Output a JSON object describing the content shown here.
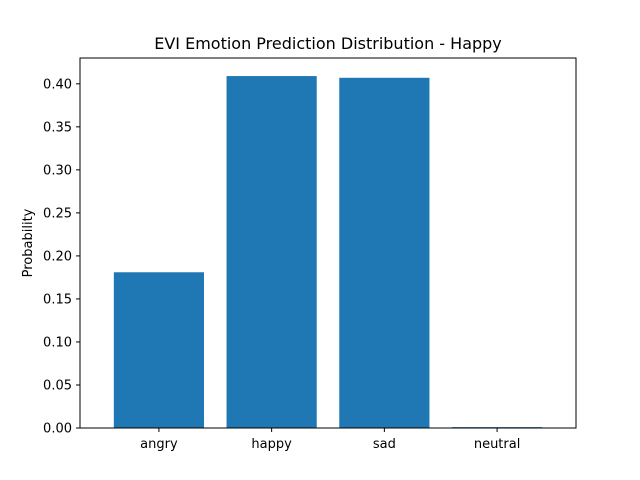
{
  "chart_data": {
    "type": "bar",
    "title": "EVI Emotion Prediction Distribution - Happy",
    "xlabel": "",
    "ylabel": "Probability",
    "categories": [
      "angry",
      "happy",
      "sad",
      "neutral"
    ],
    "values": [
      0.181,
      0.409,
      0.407,
      0.001
    ],
    "ylim": [
      0,
      0.43
    ],
    "yticks": [
      0.0,
      0.05,
      0.1,
      0.15,
      0.2,
      0.25,
      0.3,
      0.35,
      0.4
    ],
    "ytick_labels": [
      "0.00",
      "0.05",
      "0.10",
      "0.15",
      "0.20",
      "0.25",
      "0.30",
      "0.35",
      "0.40"
    ],
    "bar_color": "#1f77b4",
    "grid": false
  }
}
